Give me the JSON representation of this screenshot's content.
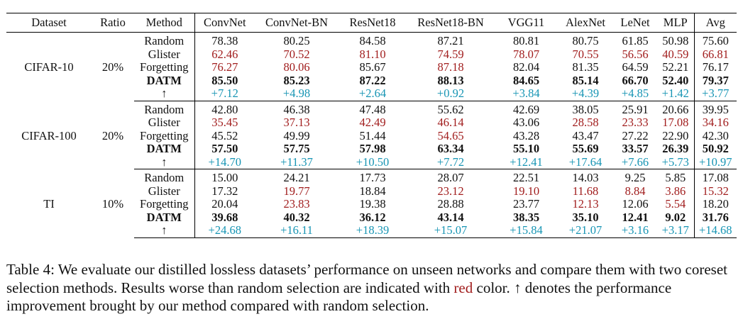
{
  "header": [
    "Dataset",
    "Ratio",
    "Method",
    "ConvNet",
    "ConvNet-BN",
    "ResNet18",
    "ResNet18-BN",
    "VGG11",
    "AlexNet",
    "LeNet",
    "MLP",
    "Avg"
  ],
  "colors": {
    "worse": "#a11d1d",
    "improvement": "#1795b4",
    "text": "#111111"
  },
  "blocks": [
    {
      "dataset": "CIFAR-10",
      "ratio": "20%",
      "rows": [
        {
          "method": "Random",
          "style": "normal",
          "values": [
            "78.38",
            "80.25",
            "84.58",
            "87.21",
            "80.81",
            "80.75",
            "61.85",
            "50.98",
            "75.60"
          ],
          "red": []
        },
        {
          "method": "Glister",
          "style": "normal",
          "values": [
            "62.46",
            "70.52",
            "81.10",
            "74.59",
            "78.07",
            "70.55",
            "56.56",
            "40.59",
            "66.81"
          ],
          "red": [
            0,
            1,
            2,
            3,
            4,
            5,
            6,
            7,
            8
          ]
        },
        {
          "method": "Forgetting",
          "style": "normal",
          "values": [
            "76.27",
            "80.06",
            "85.67",
            "87.18",
            "82.04",
            "81.35",
            "64.59",
            "52.21",
            "76.17"
          ],
          "red": [
            0,
            1,
            3
          ]
        },
        {
          "method": "DATM",
          "style": "bold",
          "values": [
            "85.50",
            "85.23",
            "87.22",
            "88.13",
            "84.65",
            "85.14",
            "66.70",
            "52.40",
            "79.37"
          ],
          "red": []
        },
        {
          "method": "↑",
          "style": "improve",
          "values": [
            "+7.12",
            "+4.98",
            "+2.64",
            "+0.92",
            "+3.84",
            "+4.39",
            "+4.85",
            "+1.42",
            "+3.77"
          ],
          "red": []
        }
      ]
    },
    {
      "dataset": "CIFAR-100",
      "ratio": "20%",
      "rows": [
        {
          "method": "Random",
          "style": "normal",
          "values": [
            "42.80",
            "46.38",
            "47.48",
            "55.62",
            "42.69",
            "38.05",
            "25.91",
            "20.66",
            "39.95"
          ],
          "red": []
        },
        {
          "method": "Glister",
          "style": "normal",
          "values": [
            "35.45",
            "37.13",
            "42.49",
            "46.14",
            "43.06",
            "28.58",
            "23.33",
            "17.08",
            "34.16"
          ],
          "red": [
            0,
            1,
            2,
            3,
            5,
            6,
            7,
            8
          ]
        },
        {
          "method": "Forgetting",
          "style": "normal",
          "values": [
            "45.52",
            "49.99",
            "51.44",
            "54.65",
            "43.28",
            "43.47",
            "27.22",
            "22.90",
            "42.30"
          ],
          "red": [
            3
          ]
        },
        {
          "method": "DATM",
          "style": "bold",
          "values": [
            "57.50",
            "57.75",
            "57.98",
            "63.34",
            "55.10",
            "55.69",
            "33.57",
            "26.39",
            "50.92"
          ],
          "red": []
        },
        {
          "method": "↑",
          "style": "improve",
          "values": [
            "+14.70",
            "+11.37",
            "+10.50",
            "+7.72",
            "+12.41",
            "+17.64",
            "+7.66",
            "+5.73",
            "+10.97"
          ],
          "red": []
        }
      ]
    },
    {
      "dataset": "TI",
      "ratio": "10%",
      "rows": [
        {
          "method": "Random",
          "style": "normal",
          "values": [
            "15.00",
            "24.21",
            "17.73",
            "28.07",
            "22.51",
            "14.03",
            "9.25",
            "5.85",
            "17.08"
          ],
          "red": []
        },
        {
          "method": "Glister",
          "style": "normal",
          "values": [
            "17.32",
            "19.77",
            "18.84",
            "23.12",
            "19.10",
            "11.68",
            "8.84",
            "3.86",
            "15.32"
          ],
          "red": [
            1,
            3,
            4,
            5,
            6,
            7,
            8
          ]
        },
        {
          "method": "Forgetting",
          "style": "normal",
          "values": [
            "20.04",
            "23.83",
            "19.38",
            "28.88",
            "23.77",
            "12.13",
            "12.06",
            "5.54",
            "18.20"
          ],
          "red": [
            1,
            5,
            7
          ]
        },
        {
          "method": "DATM",
          "style": "bold",
          "values": [
            "39.68",
            "40.32",
            "36.12",
            "43.14",
            "38.35",
            "35.10",
            "12.41",
            "9.02",
            "31.76"
          ],
          "red": []
        },
        {
          "method": "↑",
          "style": "improve",
          "values": [
            "+24.68",
            "+16.11",
            "+18.39",
            "+15.07",
            "+15.84",
            "+21.07",
            "+3.16",
            "+3.17",
            "+14.68"
          ],
          "red": []
        }
      ]
    }
  ],
  "caption": {
    "part1": "Table 4: We evaluate our distilled lossless datasets’ performance on unseen networks and compare them with two coreset selection methods. Results worse than random selection are indicated with ",
    "red_word": "red",
    "part2": " color. ↑ denotes the performance improvement brought by our method compared with random selection."
  }
}
